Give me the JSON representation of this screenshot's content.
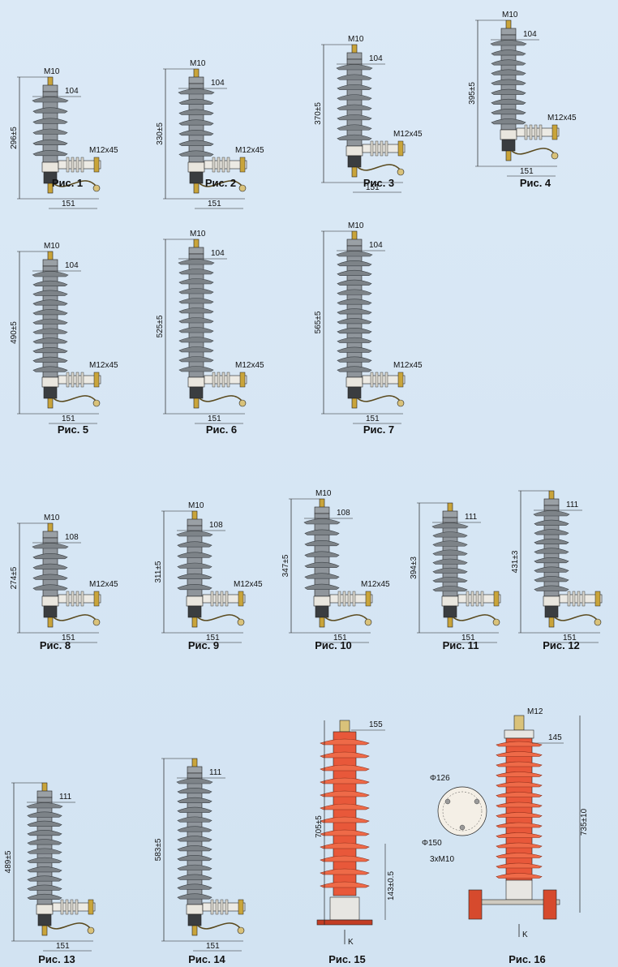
{
  "colors": {
    "background": "#d6e6f4",
    "grey_insulator": "#8f959b",
    "red_insulator": "#e8583a",
    "line": "#222222"
  },
  "figures": [
    {
      "caption": "Рис. 1",
      "type": "grey",
      "height_label": "296±5",
      "top_label": "M10",
      "width_label": "104",
      "bracket_label": "M12x45",
      "base_label": "151",
      "sheds": 6
    },
    {
      "caption": "Рис. 2",
      "type": "grey",
      "height_label": "330±5",
      "top_label": "M10",
      "width_label": "104",
      "bracket_label": "M12x45",
      "base_label": "151",
      "sheds": 7
    },
    {
      "caption": "Рис. 3",
      "type": "grey",
      "height_label": "370±5",
      "top_label": "M10",
      "width_label": "104",
      "bracket_label": "M12x45",
      "base_label": "151",
      "sheds": 8
    },
    {
      "caption": "Рис. 4",
      "type": "grey",
      "height_label": "395±5",
      "top_label": "M10",
      "width_label": "104",
      "bracket_label": "M12x45",
      "base_label": "151",
      "sheds": 9
    },
    {
      "caption": "Рис. 5",
      "type": "grey",
      "height_label": "490±5",
      "top_label": "M10",
      "width_label": "104",
      "bracket_label": "M12x45",
      "base_label": "151",
      "sheds": 11
    },
    {
      "caption": "Рис. 6",
      "type": "grey",
      "height_label": "525±5",
      "top_label": "M10",
      "width_label": "104",
      "bracket_label": "M12x45",
      "base_label": "151",
      "sheds": 12
    },
    {
      "caption": "Рис. 7",
      "type": "grey",
      "height_label": "565±5",
      "top_label": "M10",
      "width_label": "104",
      "bracket_label": "M12x45",
      "base_label": "151",
      "sheds": 13
    },
    {
      "caption": "Рис. 8",
      "type": "grey",
      "height_label": "274±5",
      "top_label": "M10",
      "width_label": "108",
      "bracket_label": "M12x45",
      "base_label": "151",
      "sheds": 5
    },
    {
      "caption": "Рис. 9",
      "type": "grey",
      "height_label": "311±5",
      "top_label": "M10",
      "width_label": "108",
      "bracket_label": "M12x45",
      "base_label": "151",
      "sheds": 6
    },
    {
      "caption": "Рис. 10",
      "type": "grey",
      "height_label": "347±5",
      "top_label": "M10",
      "width_label": "108",
      "bracket_label": "M12x45",
      "base_label": "151",
      "sheds": 7
    },
    {
      "caption": "Рис. 11",
      "type": "grey",
      "height_label": "394±3",
      "top_label": "",
      "width_label": "111",
      "bracket_label": "",
      "base_label": "151",
      "sheds": 8
    },
    {
      "caption": "Рис. 12",
      "type": "grey",
      "height_label": "431±3",
      "top_label": "",
      "width_label": "111",
      "bracket_label": "",
      "base_label": "151",
      "sheds": 9
    },
    {
      "caption": "Рис. 13",
      "type": "grey",
      "height_label": "489±5",
      "top_label": "",
      "width_label": "111",
      "bracket_label": "",
      "base_label": "151",
      "sheds": 11
    },
    {
      "caption": "Рис. 14",
      "type": "grey",
      "height_label": "583±5",
      "top_label": "",
      "width_label": "111",
      "bracket_label": "",
      "base_label": "151",
      "sheds": 13
    },
    {
      "caption": "Рис. 15",
      "type": "red15",
      "height_label": "705±5",
      "width_label": "155",
      "lower_label": "143±0.5",
      "k_label": "K",
      "sheds": 12
    },
    {
      "caption": "Рис. 16",
      "type": "red16",
      "height_label": "735±10",
      "top_label": "M12",
      "width_label": "145",
      "k_label": "K",
      "circle_outer": "Φ126",
      "circle_bolt": "Φ150",
      "holes": "3xM10",
      "sheds": 14
    }
  ]
}
